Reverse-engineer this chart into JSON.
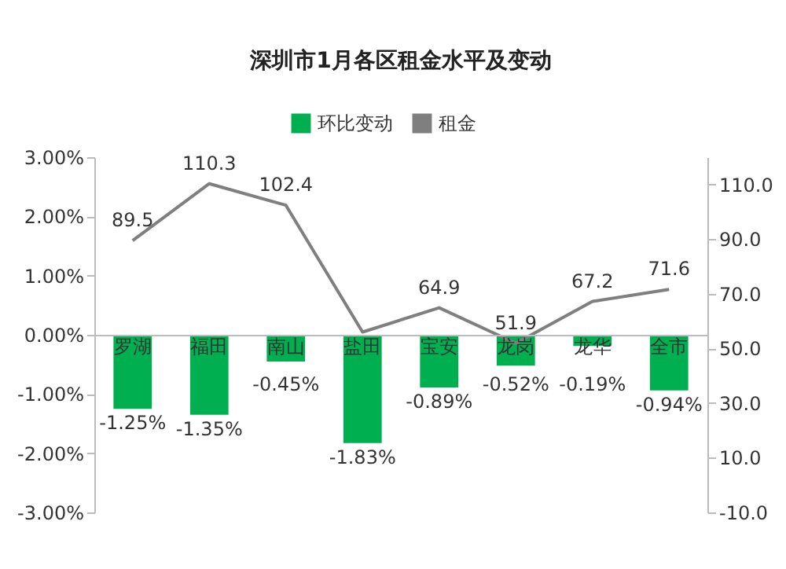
{
  "chart_data": {
    "type": "bar",
    "title": "深圳市1月各区租金水平及变动",
    "categories": [
      "罗湖",
      "福田",
      "南山",
      "盐田",
      "宝安",
      "龙岗",
      "龙华",
      "全市"
    ],
    "series": [
      {
        "name": "环比变动",
        "type": "bar",
        "color": "#00b050",
        "values": [
          -1.25,
          -1.35,
          -0.45,
          -1.83,
          -0.89,
          -0.52,
          -0.19,
          -0.94
        ],
        "value_labels": [
          "-1.25%",
          "-1.35%",
          "-0.45%",
          "-1.83%",
          "-0.89%",
          "-0.52%",
          "-0.19%",
          "-0.94%"
        ]
      },
      {
        "name": "租金",
        "type": "line",
        "axis": "y2",
        "color": "#7f7f7f",
        "values": [
          89.5,
          110.3,
          102.4,
          56,
          64.9,
          51.9,
          67.2,
          71.6
        ],
        "value_labels": [
          "89.5",
          "110.3",
          "102.4",
          null,
          "64.9",
          "51.9",
          "67.2",
          "71.6"
        ]
      }
    ],
    "ylim": [
      -3,
      3
    ],
    "yticks": [
      {
        "value": -3,
        "label": "-3.00%"
      },
      {
        "value": -2,
        "label": "-2.00%"
      },
      {
        "value": -1,
        "label": "-1.00%"
      },
      {
        "value": 0,
        "label": "0.00%"
      },
      {
        "value": 1,
        "label": "1.00%"
      },
      {
        "value": 2,
        "label": "2.00%"
      },
      {
        "value": 3,
        "label": "3.00%"
      }
    ],
    "y2lim": [
      -10,
      120
    ],
    "y2ticks": [
      {
        "value": -10,
        "label": "-10.0"
      },
      {
        "value": 10,
        "label": "10.0"
      },
      {
        "value": 30,
        "label": "30.0"
      },
      {
        "value": 50,
        "label": "50.0"
      },
      {
        "value": 70,
        "label": "70.0"
      },
      {
        "value": 90,
        "label": "90.0"
      },
      {
        "value": 110,
        "label": "110.0"
      }
    ],
    "legend": "top",
    "grid": false,
    "marker": "none",
    "line_style": "solid"
  }
}
